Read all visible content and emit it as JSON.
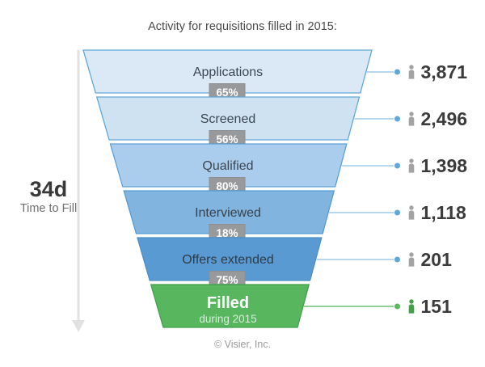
{
  "page": {
    "footer": "© Visier, Inc."
  },
  "time_to_fill": {
    "value": "34d",
    "label": "Time to Fill",
    "arrow_color": "#e1e1e1"
  },
  "chart_data": {
    "type": "funnel",
    "title": "Activity for requisitions filled in 2015:",
    "orientation": "top-wide-to-bottom-narrow",
    "value_color": "#3b3b3b",
    "badge": {
      "bg": "#98999b",
      "border": "#8d8e90",
      "text_color": "#ffffff"
    },
    "stages": [
      {
        "label": "Applications",
        "value": 3871,
        "display_value": "3,871",
        "pct_to_next": "65%",
        "fill": "#dbe9f6",
        "stroke": "#60a7d8",
        "label_color": "#3d4752",
        "line": "#9fcae9",
        "dot": "#60a8d9",
        "icon": "#a3a3a3"
      },
      {
        "label": "Screened",
        "value": 2496,
        "display_value": "2,496",
        "pct_to_next": "56%",
        "fill": "#cee2f2",
        "stroke": "#60a7d8",
        "label_color": "#3d4752",
        "line": "#9fcae9",
        "dot": "#60a8d9",
        "icon": "#a3a3a3"
      },
      {
        "label": "Qualified",
        "value": 1398,
        "display_value": "1,398",
        "pct_to_next": "80%",
        "fill": "#aacded",
        "stroke": "#5aa0d6",
        "label_color": "#3d4752",
        "line": "#9fcae9",
        "dot": "#60a8d9",
        "icon": "#a3a3a3"
      },
      {
        "label": "Interviewed",
        "value": 1118,
        "display_value": "1,118",
        "pct_to_next": "18%",
        "fill": "#81b4df",
        "stroke": "#549bd3",
        "label_color": "#36424d",
        "line": "#9fcae9",
        "dot": "#60a8d9",
        "icon": "#a3a3a3"
      },
      {
        "label": "Offers extended",
        "value": 201,
        "display_value": "201",
        "pct_to_next": "75%",
        "fill": "#5a9ad2",
        "stroke": "#4a8fc8",
        "label_color": "#2f3b46",
        "line": "#9fcae9",
        "dot": "#60a8d9",
        "icon": "#a3a3a3"
      },
      {
        "label": "Filled",
        "sublabel": "during 2015",
        "value": 151,
        "display_value": "151",
        "pct_to_next": null,
        "fill": "#58b65f",
        "stroke": "#41a04d",
        "label_color": "#ffffff",
        "sublabel_color": "#d8efdb",
        "line": "#6cbf72",
        "dot": "#5cb85c",
        "icon": "#43a047"
      }
    ]
  }
}
